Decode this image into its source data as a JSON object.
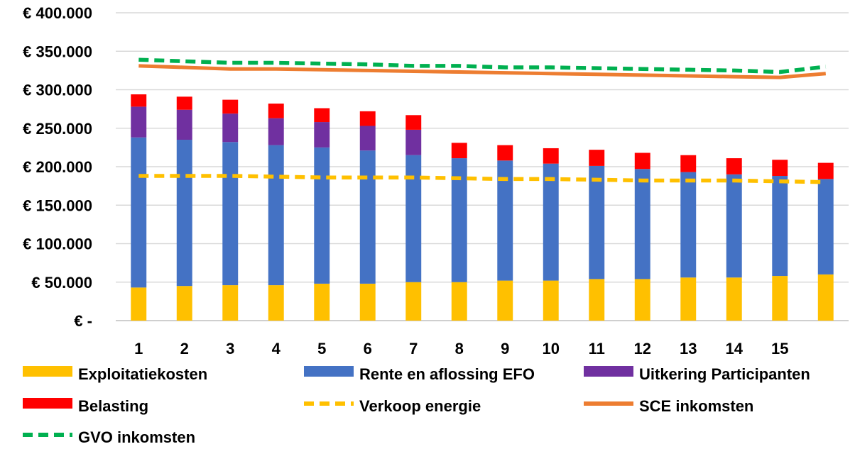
{
  "chart_data": {
    "type": "bar",
    "stacked": true,
    "categories": [
      "1",
      "2",
      "3",
      "4",
      "5",
      "6",
      "7",
      "8",
      "9",
      "10",
      "11",
      "12",
      "13",
      "14",
      "15",
      ""
    ],
    "y_ticks": [
      "€ -",
      "€ 50.000",
      "€ 100.000",
      "€ 150.000",
      "€ 200.000",
      "€ 250.000",
      "€ 300.000",
      "€ 350.000",
      "€ 400.000"
    ],
    "ylim": [
      0,
      400000
    ],
    "grid": true,
    "legend_position": "bottom",
    "bar_series": [
      {
        "name": "Exploitatiekosten",
        "color": "#FFC000",
        "values": [
          43000,
          45000,
          46000,
          46000,
          48000,
          48000,
          50000,
          50000,
          52000,
          52000,
          54000,
          54000,
          56000,
          56000,
          58000,
          60000
        ]
      },
      {
        "name": "Rente en aflossing EFO",
        "color": "#4472C4",
        "values": [
          195000,
          190000,
          186000,
          182000,
          177000,
          173000,
          165000,
          161000,
          156000,
          152000,
          147000,
          143000,
          137000,
          134000,
          130000,
          124000
        ]
      },
      {
        "name": "Uitkering Participanten",
        "color": "#7030A0",
        "values": [
          40000,
          39000,
          37000,
          35000,
          33000,
          32000,
          33000,
          0,
          0,
          0,
          0,
          0,
          0,
          0,
          0,
          0
        ]
      },
      {
        "name": "Belasting",
        "color": "#FF0000",
        "values": [
          16000,
          17000,
          18000,
          19000,
          18000,
          19000,
          19000,
          20000,
          20000,
          20000,
          21000,
          21000,
          22000,
          21000,
          21000,
          21000
        ]
      }
    ],
    "line_series": [
      {
        "name": "Verkoop energie",
        "color": "#FFC000",
        "style": "dashed",
        "values": [
          188000,
          188000,
          188000,
          187000,
          186000,
          186000,
          186000,
          185000,
          184000,
          184000,
          183000,
          182000,
          182000,
          182000,
          181000,
          180000
        ]
      },
      {
        "name": "SCE inkomsten",
        "color": "#ED7D31",
        "style": "solid",
        "values": [
          331000,
          329000,
          327000,
          327000,
          326000,
          325000,
          324000,
          323000,
          322000,
          321000,
          320000,
          319000,
          318000,
          317000,
          316000,
          321000
        ]
      },
      {
        "name": "GVO inkomsten",
        "color": "#00B050",
        "style": "dashed",
        "values": [
          339000,
          337000,
          335000,
          335000,
          334000,
          333000,
          331000,
          331000,
          329000,
          329000,
          328000,
          327000,
          326000,
          325000,
          323000,
          330000
        ]
      }
    ],
    "legend": [
      {
        "name": "Exploitatiekosten",
        "color": "#FFC000",
        "marker": "box"
      },
      {
        "name": "Rente en aflossing EFO",
        "color": "#4472C4",
        "marker": "box"
      },
      {
        "name": "Uitkering Participanten",
        "color": "#7030A0",
        "marker": "box"
      },
      {
        "name": "Belasting",
        "color": "#FF0000",
        "marker": "box"
      },
      {
        "name": "Verkoop energie",
        "color": "#FFC000",
        "marker": "dash"
      },
      {
        "name": "SCE inkomsten",
        "color": "#ED7D31",
        "marker": "line"
      },
      {
        "name": "GVO inkomsten",
        "color": "#00B050",
        "marker": "dash"
      }
    ]
  }
}
